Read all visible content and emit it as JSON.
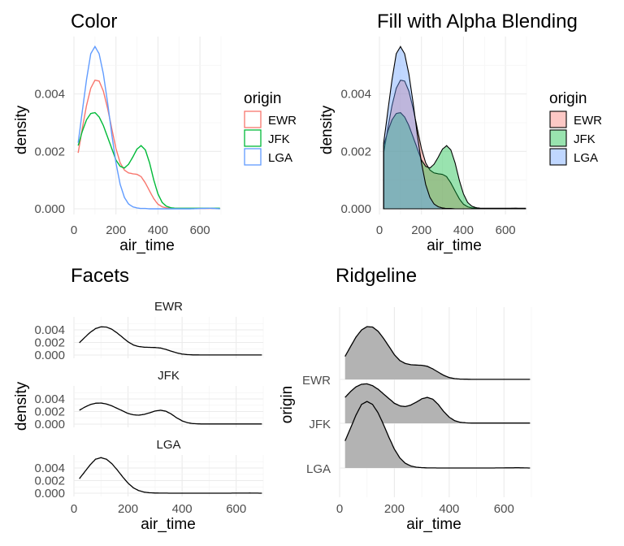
{
  "chart_data": [
    {
      "id": "color",
      "type": "line",
      "title": "Color",
      "xlabel": "air_time",
      "ylabel": "density",
      "xlim": [
        0,
        700
      ],
      "ylim": [
        0,
        0.0058
      ],
      "x_ticks": [
        0,
        200,
        400,
        600
      ],
      "y_ticks": [
        0.0,
        0.002,
        0.004
      ],
      "y_tick_labels": [
        "0.000",
        "0.002",
        "0.004"
      ],
      "grid": true,
      "legend": {
        "title": "origin",
        "position": "right",
        "style": "outline"
      },
      "series": [
        {
          "name": "EWR",
          "color": "#F8766D",
          "x": [
            20,
            40,
            60,
            80,
            100,
            120,
            140,
            160,
            180,
            200,
            220,
            240,
            260,
            280,
            300,
            320,
            340,
            360,
            380,
            400,
            420,
            440,
            460,
            480,
            500,
            550,
            600,
            650,
            695
          ],
          "y": [
            0.00195,
            0.0028,
            0.0036,
            0.0042,
            0.00448,
            0.00445,
            0.0041,
            0.0035,
            0.0028,
            0.0021,
            0.0016,
            0.00135,
            0.00125,
            0.00122,
            0.0012,
            0.00112,
            0.0009,
            0.00062,
            0.00035,
            0.00016,
            7e-05,
            3e-05,
            2e-05,
            1e-05,
            1e-05,
            1e-05,
            1e-05,
            1e-05,
            1e-05
          ]
        },
        {
          "name": "JFK",
          "color": "#00BA38",
          "x": [
            20,
            40,
            60,
            80,
            100,
            120,
            140,
            160,
            180,
            200,
            220,
            240,
            260,
            280,
            300,
            320,
            340,
            360,
            380,
            400,
            420,
            440,
            460,
            480,
            500,
            550,
            600,
            650,
            695
          ],
          "y": [
            0.0022,
            0.0027,
            0.0031,
            0.00332,
            0.00335,
            0.0032,
            0.0029,
            0.0025,
            0.0021,
            0.0017,
            0.00148,
            0.00142,
            0.00155,
            0.0018,
            0.00208,
            0.0022,
            0.00205,
            0.0016,
            0.001,
            0.00052,
            0.00022,
            9e-05,
            4e-05,
            2e-05,
            2e-05,
            2e-05,
            2e-05,
            2e-05,
            2e-05
          ]
        },
        {
          "name": "LGA",
          "color": "#619CFF",
          "x": [
            20,
            40,
            60,
            80,
            100,
            120,
            140,
            160,
            180,
            200,
            220,
            240,
            260,
            280,
            300,
            320,
            340,
            360,
            380,
            400,
            420,
            440,
            460,
            480,
            500,
            550,
            600,
            650,
            695
          ],
          "y": [
            0.0023,
            0.0034,
            0.0045,
            0.0054,
            0.00565,
            0.0054,
            0.0047,
            0.0037,
            0.0026,
            0.0016,
            0.00085,
            0.0004,
            0.00017,
            7e-05,
            3e-05,
            1e-05,
            1e-05,
            0,
            0,
            0,
            0,
            0,
            0,
            0,
            0,
            0,
            1e-05,
            2e-05,
            0
          ]
        }
      ]
    },
    {
      "id": "fill",
      "type": "area",
      "title": "Fill with Alpha Blending",
      "xlabel": "air_time",
      "ylabel": "density",
      "xlim": [
        0,
        700
      ],
      "ylim": [
        0,
        0.0058
      ],
      "x_ticks": [
        0,
        200,
        400,
        600
      ],
      "y_ticks": [
        0.0,
        0.002,
        0.004
      ],
      "y_tick_labels": [
        "0.000",
        "0.002",
        "0.004"
      ],
      "grid": true,
      "alpha": 0.4,
      "legend": {
        "title": "origin",
        "position": "right",
        "style": "filled"
      },
      "series": [
        {
          "name": "EWR",
          "color": "#F8766D"
        },
        {
          "name": "JFK",
          "color": "#00BA38"
        },
        {
          "name": "LGA",
          "color": "#619CFF"
        }
      ]
    },
    {
      "id": "facets",
      "type": "line",
      "title": "Facets",
      "xlabel": "air_time",
      "ylabel": "density",
      "xlim": [
        0,
        700
      ],
      "ylim": [
        0,
        0.0058
      ],
      "x_ticks": [
        0,
        200,
        400,
        600
      ],
      "y_ticks": [
        0.0,
        0.002,
        0.004
      ],
      "y_tick_labels": [
        "0.000",
        "0.002",
        "0.004"
      ],
      "grid": true,
      "facet_rows": [
        "EWR",
        "JFK",
        "LGA"
      ],
      "line_color": "#000000"
    },
    {
      "id": "ridgeline",
      "type": "area",
      "title": "Ridgeline",
      "xlabel": "air_time",
      "ylabel": "origin",
      "xlim": [
        0,
        700
      ],
      "x_ticks": [
        0,
        200,
        400,
        600
      ],
      "categories": [
        "EWR",
        "JFK",
        "LGA"
      ],
      "fill_color": "#b3b3b3",
      "line_color": "#000000",
      "grid": true
    }
  ]
}
